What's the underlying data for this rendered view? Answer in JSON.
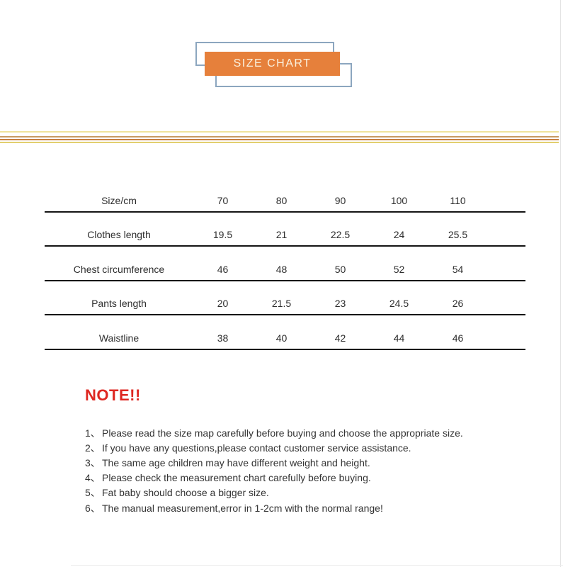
{
  "title": {
    "label": "SIZE CHART"
  },
  "colors": {
    "banner_orange": "#E6803B",
    "banner_outline_blue": "#8CA6BF",
    "banner_text": "#FAF1DF",
    "note_red": "#DE2721",
    "table_line": "#141414",
    "body_text": "#333333",
    "divider": [
      "#EFE49B",
      "#C69B63",
      "#C67F41",
      "#E2CF6F"
    ]
  },
  "table": {
    "rows": [
      [
        "Size/cm",
        "70",
        "80",
        "90",
        "100",
        "110"
      ],
      [
        "Clothes length",
        "19.5",
        "21",
        "22.5",
        "24",
        "25.5"
      ],
      [
        "Chest circumference",
        "46",
        "48",
        "50",
        "52",
        "54"
      ],
      [
        "Pants length",
        "20",
        "21.5",
        "23",
        "24.5",
        "26"
      ],
      [
        "Waistline",
        "38",
        "40",
        "42",
        "44",
        "46"
      ]
    ]
  },
  "note": {
    "heading": "NOTE!!",
    "items": [
      {
        "num": "1、",
        "text": "Please read the size map carefully before buying and choose the appropriate size."
      },
      {
        "num": "2、",
        "text": "If you have any questions,please contact customer service assistance."
      },
      {
        "num": "3、",
        "text": "The same age children may have different weight and height."
      },
      {
        "num": "4、",
        "text": "Please check the measurement chart carefully before buying."
      },
      {
        "num": "5、",
        "text": "Fat baby should choose a bigger size."
      },
      {
        "num": "6、",
        "text": "The manual measurement,error in 1-2cm with the normal range!"
      }
    ]
  }
}
